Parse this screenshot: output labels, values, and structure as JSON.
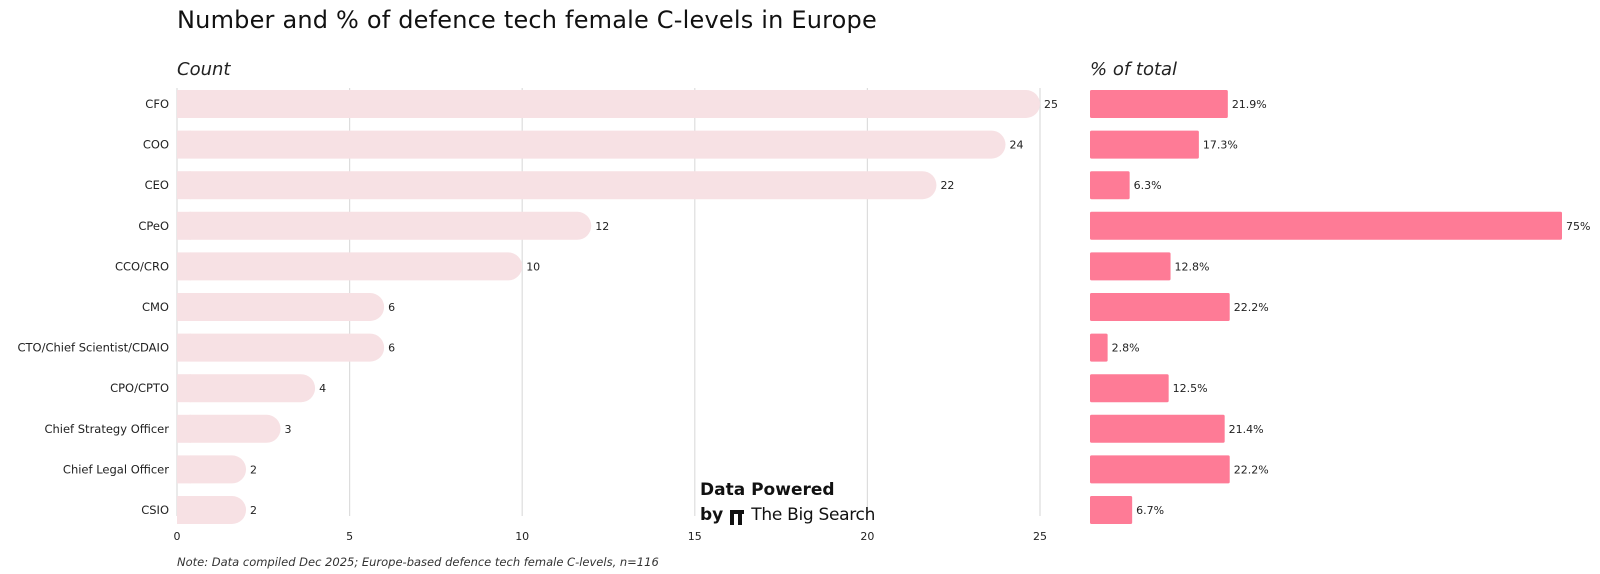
{
  "title": "Number and % of defence tech female C-levels in Europe",
  "note": "Note: Data compiled Dec 2025; Europe-based defence tech female C-levels, n=116",
  "watermark": {
    "line1": "Data Powered",
    "by": "by",
    "brand": "The Big Search"
  },
  "colors": {
    "count_bar": "#f7e1e4",
    "pct_bar": "#fe7b96",
    "grid": "#dddddd",
    "text": "#222222"
  },
  "chart_data": [
    {
      "type": "bar",
      "orientation": "horizontal",
      "title": "Count",
      "categories": [
        "CFO",
        "COO",
        "CEO",
        "CPeO",
        "CCO/CRO",
        "CMO",
        "CTO/Chief Scientist/CDAIO",
        "CPO/CPTO",
        "Chief Strategy Officer",
        "Chief Legal Officer",
        "CSIO"
      ],
      "values": [
        25,
        24,
        22,
        12,
        10,
        6,
        6,
        4,
        3,
        2,
        2
      ],
      "value_labels": [
        "25",
        "24",
        "22",
        "12",
        "10",
        "6",
        "6",
        "4",
        "3",
        "2",
        "2"
      ],
      "xlim": [
        0,
        25
      ],
      "xticks": [
        0,
        5,
        10,
        15,
        20,
        25
      ],
      "xtick_labels": [
        "0",
        "5",
        "10",
        "15",
        "20",
        "25"
      ],
      "grid": true
    },
    {
      "type": "bar",
      "orientation": "horizontal",
      "title": "% of total",
      "categories": [
        "CFO",
        "COO",
        "CEO",
        "CPeO",
        "CCO/CRO",
        "CMO",
        "CTO/Chief Scientist/CDAIO",
        "CPO/CPTO",
        "Chief Strategy Officer",
        "Chief Legal Officer",
        "CSIO"
      ],
      "values": [
        21.9,
        17.3,
        6.3,
        75,
        12.8,
        22.2,
        2.8,
        12.5,
        21.4,
        22.2,
        6.7
      ],
      "value_labels": [
        "21.9%",
        "17.3%",
        "6.3%",
        "75%",
        "12.8%",
        "22.2%",
        "2.8%",
        "12.5%",
        "21.4%",
        "22.2%",
        "6.7%"
      ],
      "xlim": [
        0,
        75
      ],
      "grid": false
    }
  ]
}
